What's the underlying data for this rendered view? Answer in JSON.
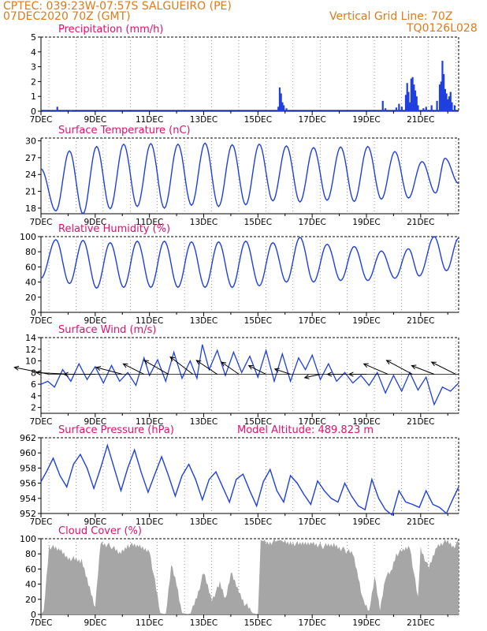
{
  "header": {
    "line1_left": "CPTEC:   039:23W-07:57S   SALGUEIRO (PE)",
    "line2_left": "07DEC2020 70Z (GMT)",
    "line1_right": "Vertical Grid Line: 70Z",
    "line2_right": "TQ0126L028"
  },
  "colors": {
    "header": "#e07a1a",
    "title": "#e0106e",
    "series": "#1f3fe0",
    "cloud": "#a6a6a6",
    "axis": "#000000",
    "grid": "#555555"
  },
  "x_ticks": [
    "7DEC",
    "9DEC",
    "11DEC",
    "13DEC",
    "15DEC",
    "17DEC",
    "19DEC",
    "21DEC"
  ],
  "chart_data": [
    {
      "type": "bar",
      "title": "Precipitation (mm/h)",
      "ylim": [
        0,
        5
      ],
      "yticks": [
        "0",
        "1",
        "2",
        "3",
        "4",
        "5"
      ],
      "x_range_days": [
        7,
        22.4
      ],
      "points": [
        [
          7.6,
          0.3
        ],
        [
          8.1,
          0.05
        ],
        [
          15.75,
          0.3
        ],
        [
          15.8,
          1.6
        ],
        [
          15.85,
          1.2
        ],
        [
          15.9,
          0.6
        ],
        [
          15.95,
          0.4
        ],
        [
          16.05,
          0.2
        ],
        [
          19.6,
          0.7
        ],
        [
          19.7,
          0.2
        ],
        [
          20.1,
          0.25
        ],
        [
          20.2,
          0.5
        ],
        [
          20.3,
          0.3
        ],
        [
          20.45,
          1.1
        ],
        [
          20.5,
          1.9
        ],
        [
          20.55,
          1.3
        ],
        [
          20.6,
          0.6
        ],
        [
          20.65,
          2.2
        ],
        [
          20.7,
          2.3
        ],
        [
          20.75,
          1.8
        ],
        [
          20.8,
          1.4
        ],
        [
          20.85,
          1.0
        ],
        [
          20.9,
          0.4
        ],
        [
          21.1,
          0.2
        ],
        [
          21.2,
          0.3
        ],
        [
          21.4,
          0.4
        ],
        [
          21.6,
          0.7
        ],
        [
          21.7,
          1.8
        ],
        [
          21.75,
          2.0
        ],
        [
          21.8,
          3.4
        ],
        [
          21.85,
          2.5
        ],
        [
          21.9,
          1.5
        ],
        [
          21.95,
          1.2
        ],
        [
          22.0,
          0.8
        ],
        [
          22.05,
          1.0
        ],
        [
          22.1,
          1.3
        ],
        [
          22.15,
          0.6
        ],
        [
          22.25,
          0.4
        ]
      ]
    },
    {
      "type": "line",
      "title": "Surface Temperature (nC)",
      "ylim": [
        17,
        30.5
      ],
      "yticks": [
        "18",
        "21",
        "24",
        "27",
        "30"
      ],
      "x_range_days": [
        7,
        22.4
      ],
      "mins": [
        [
          7,
          25
        ],
        [
          7.55,
          17.5
        ],
        [
          8.55,
          17.0
        ],
        [
          9.55,
          17.9
        ],
        [
          10.55,
          18.3
        ],
        [
          11.55,
          18.0
        ],
        [
          12.55,
          18.5
        ],
        [
          13.55,
          18.3
        ],
        [
          14.55,
          18.6
        ],
        [
          15.55,
          19.3
        ],
        [
          16.55,
          19.1
        ],
        [
          17.55,
          19.4
        ],
        [
          18.55,
          19.2
        ],
        [
          19.55,
          19.6
        ],
        [
          20.55,
          19.8
        ],
        [
          21.55,
          20.7
        ]
      ],
      "maxes": [
        [
          8.05,
          28.2
        ],
        [
          9.05,
          29.0
        ],
        [
          10.05,
          29.4
        ],
        [
          11.05,
          29.5
        ],
        [
          12.05,
          29.4
        ],
        [
          13.05,
          29.6
        ],
        [
          14.05,
          29.3
        ],
        [
          15.05,
          29.4
        ],
        [
          16.05,
          29.1
        ],
        [
          17.05,
          28.8
        ],
        [
          18.05,
          28.9
        ],
        [
          19.05,
          29.0
        ],
        [
          20.05,
          28.1
        ],
        [
          21.05,
          26.3
        ],
        [
          21.9,
          26.9
        ],
        [
          22.4,
          22.4
        ]
      ]
    },
    {
      "type": "line",
      "title": "Relative Humidity (%)",
      "ylim": [
        0,
        100
      ],
      "yticks": [
        "0",
        "20",
        "40",
        "60",
        "80",
        "100"
      ],
      "x_range_days": [
        7,
        22.4
      ],
      "mins": [
        [
          7,
          45
        ],
        [
          8.05,
          38
        ],
        [
          9.05,
          32
        ],
        [
          10.05,
          33
        ],
        [
          11.05,
          33
        ],
        [
          12.05,
          33
        ],
        [
          13.05,
          33
        ],
        [
          14.05,
          33
        ],
        [
          15.05,
          35
        ],
        [
          16.05,
          40
        ],
        [
          17.05,
          40
        ],
        [
          18.05,
          42
        ],
        [
          19.05,
          42
        ],
        [
          20.05,
          45
        ],
        [
          20.95,
          48
        ],
        [
          21.95,
          55
        ]
      ],
      "maxes": [
        [
          7.55,
          96
        ],
        [
          8.55,
          95
        ],
        [
          9.55,
          92
        ],
        [
          10.55,
          94
        ],
        [
          11.55,
          94
        ],
        [
          12.55,
          93
        ],
        [
          13.55,
          93
        ],
        [
          14.55,
          94
        ],
        [
          15.55,
          92
        ],
        [
          16.55,
          99
        ],
        [
          17.55,
          90
        ],
        [
          18.55,
          87
        ],
        [
          19.55,
          81
        ],
        [
          20.55,
          84
        ],
        [
          21.5,
          100
        ],
        [
          22.4,
          98
        ]
      ]
    },
    {
      "type": "line",
      "title": "Surface Wind (m/s)",
      "ylim": [
        1,
        14
      ],
      "yticks": [
        "2",
        "4",
        "6",
        "8",
        "10",
        "12",
        "14"
      ],
      "x_range_days": [
        7,
        22.4
      ],
      "values": [
        [
          7,
          6.0
        ],
        [
          7.25,
          6.5
        ],
        [
          7.5,
          5.5
        ],
        [
          7.8,
          8.5
        ],
        [
          8.1,
          6.5
        ],
        [
          8.4,
          9.5
        ],
        [
          8.7,
          6.8
        ],
        [
          9.0,
          9.0
        ],
        [
          9.3,
          6.2
        ],
        [
          9.6,
          9.2
        ],
        [
          9.9,
          6.5
        ],
        [
          10.2,
          8.0
        ],
        [
          10.5,
          5.8
        ],
        [
          10.8,
          10.5
        ],
        [
          11.0,
          7.5
        ],
        [
          11.3,
          10.2
        ],
        [
          11.6,
          6.5
        ],
        [
          11.9,
          11.5
        ],
        [
          12.2,
          7.0
        ],
        [
          12.5,
          10.0
        ],
        [
          12.75,
          7.0
        ],
        [
          12.95,
          12.8
        ],
        [
          13.2,
          8.5
        ],
        [
          13.5,
          11.8
        ],
        [
          13.8,
          7.5
        ],
        [
          14.1,
          11.5
        ],
        [
          14.4,
          8.0
        ],
        [
          14.7,
          10.8
        ],
        [
          15.0,
          7.2
        ],
        [
          15.3,
          11.8
        ],
        [
          15.6,
          6.5
        ],
        [
          15.9,
          11.2
        ],
        [
          16.2,
          6.5
        ],
        [
          16.5,
          10.5
        ],
        [
          16.75,
          8.5
        ],
        [
          17.0,
          11.0
        ],
        [
          17.3,
          6.8
        ],
        [
          17.6,
          9.5
        ],
        [
          17.9,
          6.5
        ],
        [
          18.2,
          8.0
        ],
        [
          18.5,
          6.2
        ],
        [
          18.8,
          7.5
        ],
        [
          19.1,
          5.8
        ],
        [
          19.4,
          8.0
        ],
        [
          19.7,
          4.5
        ],
        [
          20.0,
          7.5
        ],
        [
          20.3,
          4.8
        ],
        [
          20.6,
          8.0
        ],
        [
          20.9,
          5.0
        ],
        [
          21.2,
          7.2
        ],
        [
          21.5,
          2.5
        ],
        [
          21.8,
          5.5
        ],
        [
          22.1,
          4.8
        ],
        [
          22.4,
          6.2
        ]
      ],
      "vectors": [
        [
          7.3,
          -2,
          0.4
        ],
        [
          8.1,
          -2,
          0.1
        ],
        [
          9.0,
          -1.8,
          0
        ],
        [
          10.0,
          -1.5,
          0.4
        ],
        [
          10.8,
          -1.2,
          0.6
        ],
        [
          11.7,
          -1.4,
          0.8
        ],
        [
          12.6,
          -1.3,
          1.0
        ],
        [
          13.5,
          -1.2,
          0.8
        ],
        [
          14.3,
          -1.0,
          0.7
        ],
        [
          15.3,
          -1.0,
          0.5
        ],
        [
          16.2,
          -0.9,
          0.3
        ],
        [
          17.3,
          -0.9,
          -0.2
        ],
        [
          18.2,
          -1.0,
          0
        ],
        [
          19.0,
          -1.0,
          0
        ],
        [
          19.8,
          -1.4,
          0.6
        ],
        [
          20.7,
          -1.5,
          0.8
        ],
        [
          21.5,
          -1.3,
          0.5
        ],
        [
          22.3,
          -1.4,
          0.7
        ]
      ]
    },
    {
      "type": "line",
      "title": "Surface Pressure (hPa)",
      "ylim": [
        952,
        962
      ],
      "yticks": [
        "952",
        "954",
        "956",
        "958",
        "960",
        "962"
      ],
      "x_range_days": [
        7,
        22.4
      ],
      "values": [
        [
          7,
          956.2
        ],
        [
          7.2,
          957.5
        ],
        [
          7.45,
          959.3
        ],
        [
          7.7,
          957.0
        ],
        [
          7.95,
          955.5
        ],
        [
          8.2,
          958.5
        ],
        [
          8.45,
          959.8
        ],
        [
          8.7,
          958.0
        ],
        [
          8.95,
          955.3
        ],
        [
          9.2,
          958.0
        ],
        [
          9.45,
          961.0
        ],
        [
          9.7,
          958.0
        ],
        [
          9.95,
          955.0
        ],
        [
          10.2,
          958.0
        ],
        [
          10.45,
          960.4
        ],
        [
          10.7,
          957.4
        ],
        [
          10.95,
          954.8
        ],
        [
          11.2,
          957.2
        ],
        [
          11.45,
          959.5
        ],
        [
          11.7,
          957.0
        ],
        [
          11.95,
          954.3
        ],
        [
          12.2,
          957.0
        ],
        [
          12.45,
          958.5
        ],
        [
          12.7,
          956.5
        ],
        [
          12.95,
          953.8
        ],
        [
          13.2,
          956.5
        ],
        [
          13.45,
          957.5
        ],
        [
          13.7,
          955.5
        ],
        [
          13.95,
          953.5
        ],
        [
          14.2,
          956.5
        ],
        [
          14.45,
          957.2
        ],
        [
          14.7,
          955.0
        ],
        [
          14.95,
          953.0
        ],
        [
          15.2,
          956.2
        ],
        [
          15.45,
          957.8
        ],
        [
          15.7,
          955.0
        ],
        [
          15.95,
          953.5
        ],
        [
          16.2,
          957.0
        ],
        [
          16.45,
          956.0
        ],
        [
          16.7,
          954.5
        ],
        [
          16.95,
          953.2
        ],
        [
          17.2,
          956.3
        ],
        [
          17.45,
          955.0
        ],
        [
          17.7,
          954.0
        ],
        [
          17.95,
          953.5
        ],
        [
          18.2,
          956.0
        ],
        [
          18.45,
          954.3
        ],
        [
          18.7,
          953.0
        ],
        [
          18.95,
          952.5
        ],
        [
          19.2,
          956.5
        ],
        [
          19.45,
          954.0
        ],
        [
          19.7,
          952.5
        ],
        [
          19.95,
          951.8
        ],
        [
          20.2,
          955.0
        ],
        [
          20.45,
          953.5
        ],
        [
          20.7,
          953.2
        ],
        [
          20.95,
          952.8
        ],
        [
          21.2,
          955.0
        ],
        [
          21.45,
          953.2
        ],
        [
          21.7,
          952.8
        ],
        [
          21.95,
          952.0
        ],
        [
          22.2,
          954.0
        ],
        [
          22.4,
          955.5
        ]
      ]
    },
    {
      "type": "area",
      "title": "Cloud Cover (%)",
      "ylim": [
        0,
        100
      ],
      "yticks": [
        "0",
        "20",
        "40",
        "60",
        "80",
        "100"
      ],
      "x_range_days": [
        7,
        22.4
      ],
      "values": [
        [
          7,
          0
        ],
        [
          7.1,
          5
        ],
        [
          7.3,
          90
        ],
        [
          7.7,
          85
        ],
        [
          8.0,
          75
        ],
        [
          8.5,
          70
        ],
        [
          8.8,
          35
        ],
        [
          9.0,
          10
        ],
        [
          9.2,
          95
        ],
        [
          9.6,
          90
        ],
        [
          9.9,
          80
        ],
        [
          10.2,
          92
        ],
        [
          10.6,
          90
        ],
        [
          11.0,
          85
        ],
        [
          11.4,
          2
        ],
        [
          11.6,
          0
        ],
        [
          11.8,
          65
        ],
        [
          12.0,
          40
        ],
        [
          12.2,
          2
        ],
        [
          12.5,
          0
        ],
        [
          12.8,
          30
        ],
        [
          13.0,
          55
        ],
        [
          13.3,
          20
        ],
        [
          13.6,
          40
        ],
        [
          13.8,
          20
        ],
        [
          14.0,
          55
        ],
        [
          14.3,
          30
        ],
        [
          14.5,
          15
        ],
        [
          14.8,
          2
        ],
        [
          15.0,
          0
        ],
        [
          15.1,
          98
        ],
        [
          15.4,
          95
        ],
        [
          15.8,
          98
        ],
        [
          16.2,
          95
        ],
        [
          16.6,
          92
        ],
        [
          17.0,
          95
        ],
        [
          17.4,
          90
        ],
        [
          17.8,
          92
        ],
        [
          18.2,
          85
        ],
        [
          18.5,
          80
        ],
        [
          18.7,
          50
        ],
        [
          18.9,
          15
        ],
        [
          19.1,
          5
        ],
        [
          19.3,
          50
        ],
        [
          19.5,
          5
        ],
        [
          19.7,
          50
        ],
        [
          19.9,
          55
        ],
        [
          20.1,
          80
        ],
        [
          20.4,
          85
        ],
        [
          20.6,
          90
        ],
        [
          20.9,
          20
        ],
        [
          21.0,
          88
        ],
        [
          21.3,
          60
        ],
        [
          21.6,
          90
        ],
        [
          21.8,
          95
        ],
        [
          22.0,
          96
        ],
        [
          22.2,
          90
        ],
        [
          22.4,
          95
        ]
      ]
    }
  ]
}
